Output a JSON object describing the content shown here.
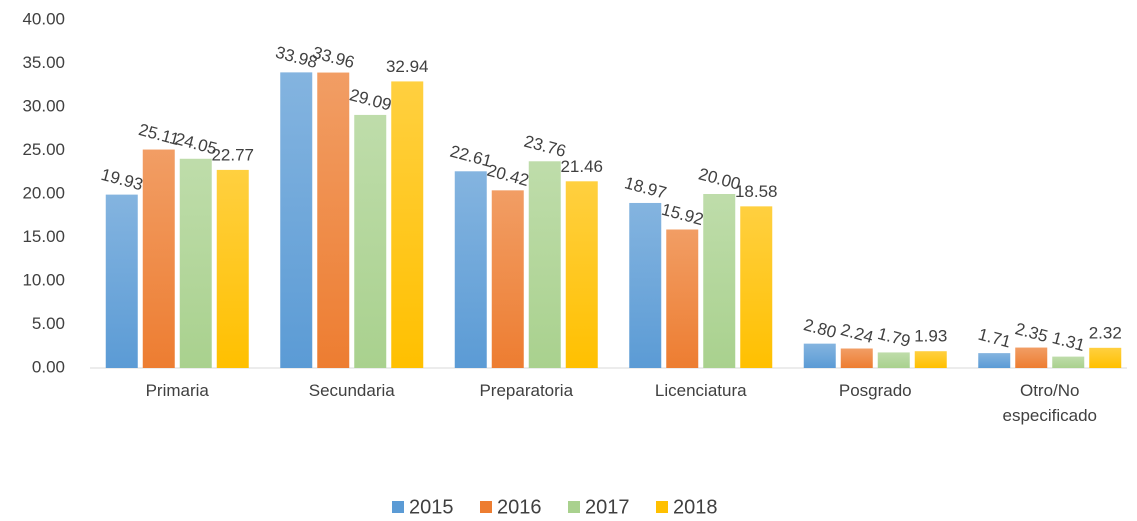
{
  "chart_data": {
    "type": "bar",
    "categories": [
      "Primaria",
      "Secundaria",
      "Preparatoria",
      "Licenciatura",
      "Posgrado",
      "Otro/No especificado"
    ],
    "series": [
      {
        "name": "2015",
        "color": "#5b9bd5",
        "values": [
          19.93,
          33.98,
          22.61,
          18.97,
          2.8,
          1.71
        ],
        "value_labels": [
          "19.93",
          "33.98",
          "22.61",
          "18.97",
          "2.80",
          "1.71"
        ]
      },
      {
        "name": "2016",
        "color": "#ed7d31",
        "values": [
          25.11,
          33.96,
          20.42,
          15.92,
          2.24,
          2.35
        ],
        "value_labels": [
          "25.11",
          "33.96",
          "20.42",
          "15.92",
          "2.24",
          "2.35"
        ]
      },
      {
        "name": "2017",
        "color": "#a9d18e",
        "values": [
          24.05,
          29.09,
          23.76,
          20.0,
          1.79,
          1.31
        ],
        "value_labels": [
          "24.05",
          "29.09",
          "23.76",
          "20.00",
          "1.79",
          "1.31"
        ]
      },
      {
        "name": "2018",
        "color": "#ffc000",
        "values": [
          22.77,
          32.94,
          21.46,
          18.58,
          1.93,
          2.32
        ],
        "value_labels": [
          "22.77",
          "32.94",
          "21.46",
          "18.58",
          "1.93",
          "2.32"
        ]
      }
    ],
    "ylim": [
      0,
      40
    ],
    "yticks": [
      {
        "value": 0,
        "label": "0.00"
      },
      {
        "value": 5,
        "label": "5.00"
      },
      {
        "value": 10,
        "label": "10.00"
      },
      {
        "value": 15,
        "label": "15.00"
      },
      {
        "value": 20,
        "label": "20.00"
      },
      {
        "value": 25,
        "label": "25.00"
      },
      {
        "value": 30,
        "label": "30.00"
      },
      {
        "value": 35,
        "label": "35.00"
      },
      {
        "value": 40,
        "label": "40.00"
      }
    ],
    "legend": "bottom"
  }
}
